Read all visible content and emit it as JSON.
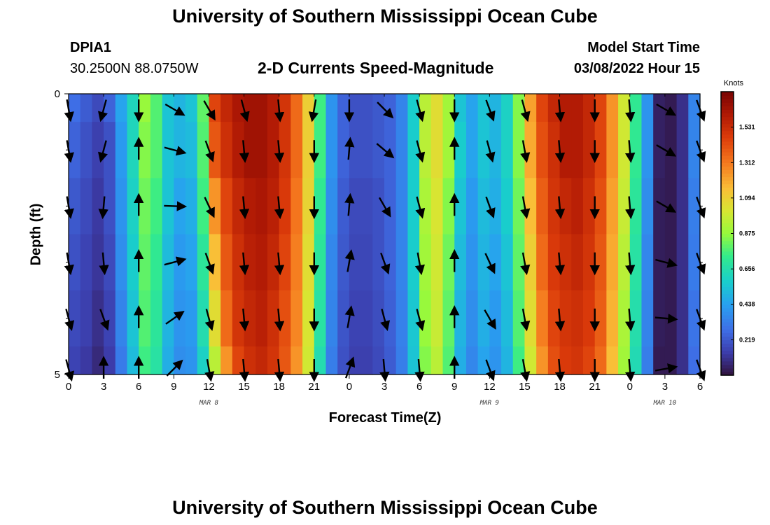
{
  "header": {
    "title": "University of Southern Mississippi Ocean Cube",
    "station_id": "DPIA1",
    "station_coords": "30.2500N  88.0750W",
    "plot_title": "2-D Currents Speed-Magnitude",
    "model_start_label": "Model Start Time",
    "model_start_value": "03/08/2022 Hour 15"
  },
  "footer": {
    "title": "University of Southern Mississippi Ocean Cube"
  },
  "chart_data": {
    "type": "heatmap",
    "title": "2-D Currents Speed-Magnitude",
    "xlabel": "Forecast Time(Z)",
    "ylabel": "Depth (ft)",
    "x_ticks": [
      "0",
      "3",
      "6",
      "9",
      "12",
      "15",
      "18",
      "21",
      "0",
      "3",
      "6",
      "9",
      "12",
      "15",
      "18",
      "21",
      "0",
      "3",
      "6"
    ],
    "x_range_hours": [
      0,
      54
    ],
    "y_ticks": [
      "0",
      "5"
    ],
    "y_range_ft": [
      0,
      5
    ],
    "date_labels": [
      {
        "label": "MAR 8",
        "hour": 12
      },
      {
        "label": "MAR 9",
        "hour": 36
      },
      {
        "label": "MAR 10",
        "hour": 51
      }
    ],
    "colorbar": {
      "unit": "Knots",
      "min": 0.0,
      "max": 1.75,
      "ticks": [
        "0.219",
        "0.438",
        "0.656",
        "0.875",
        "1.094",
        "1.312",
        "1.531"
      ],
      "tick_values": [
        0.219,
        0.438,
        0.656,
        0.875,
        1.094,
        1.312,
        1.531
      ]
    },
    "depth_levels_ft": [
      0,
      0.5,
      1.5,
      2.5,
      3.5,
      4.5
    ],
    "hours": [
      0,
      1,
      2,
      3,
      4,
      5,
      6,
      7,
      8,
      9,
      10,
      11,
      12,
      13,
      14,
      15,
      16,
      17,
      18,
      19,
      20,
      21,
      22,
      23,
      24,
      25,
      26,
      27,
      28,
      29,
      30,
      31,
      32,
      33,
      34,
      35,
      36,
      37,
      38,
      39,
      40,
      41,
      42,
      43,
      44,
      45,
      46,
      47,
      48,
      49,
      50,
      51,
      52,
      53
    ],
    "speed_knots": [
      [
        0.28,
        0.23,
        0.18,
        0.25,
        0.45,
        0.62,
        0.88,
        0.78,
        0.55,
        0.5,
        0.55,
        0.8,
        1.45,
        1.55,
        1.62,
        1.65,
        1.65,
        1.6,
        1.5,
        1.35,
        1.1,
        0.75,
        0.4,
        0.25,
        0.2,
        0.2,
        0.22,
        0.25,
        0.35,
        0.58,
        0.95,
        1.05,
        0.9,
        0.55,
        0.45,
        0.55,
        0.5,
        0.6,
        0.85,
        1.22,
        1.45,
        1.55,
        1.6,
        1.6,
        1.55,
        1.45,
        1.25,
        1.0,
        0.72,
        0.4,
        0.05,
        0.03,
        0.1,
        0.35
      ],
      [
        0.25,
        0.2,
        0.15,
        0.2,
        0.42,
        0.62,
        0.85,
        0.78,
        0.55,
        0.5,
        0.52,
        0.78,
        1.4,
        1.52,
        1.6,
        1.65,
        1.65,
        1.6,
        1.5,
        1.35,
        1.1,
        0.75,
        0.4,
        0.25,
        0.2,
        0.2,
        0.22,
        0.25,
        0.35,
        0.58,
        0.95,
        1.05,
        0.9,
        0.58,
        0.45,
        0.55,
        0.5,
        0.6,
        0.85,
        1.2,
        1.42,
        1.52,
        1.6,
        1.6,
        1.55,
        1.45,
        1.25,
        1.0,
        0.72,
        0.4,
        0.05,
        0.03,
        0.1,
        0.35
      ],
      [
        0.22,
        0.18,
        0.13,
        0.2,
        0.4,
        0.6,
        0.82,
        0.75,
        0.55,
        0.45,
        0.48,
        0.75,
        1.25,
        1.45,
        1.55,
        1.6,
        1.62,
        1.58,
        1.48,
        1.32,
        1.08,
        0.72,
        0.38,
        0.23,
        0.18,
        0.18,
        0.2,
        0.25,
        0.35,
        0.58,
        0.92,
        1.02,
        0.85,
        0.55,
        0.42,
        0.52,
        0.48,
        0.58,
        0.82,
        1.15,
        1.38,
        1.5,
        1.55,
        1.58,
        1.52,
        1.42,
        1.22,
        0.98,
        0.7,
        0.38,
        0.04,
        0.03,
        0.1,
        0.33
      ],
      [
        0.2,
        0.16,
        0.12,
        0.18,
        0.38,
        0.58,
        0.8,
        0.72,
        0.52,
        0.42,
        0.45,
        0.7,
        1.15,
        1.4,
        1.52,
        1.58,
        1.6,
        1.55,
        1.45,
        1.3,
        1.05,
        0.7,
        0.36,
        0.22,
        0.17,
        0.17,
        0.2,
        0.25,
        0.35,
        0.58,
        0.9,
        1.0,
        0.82,
        0.52,
        0.4,
        0.5,
        0.45,
        0.55,
        0.8,
        1.1,
        1.35,
        1.48,
        1.52,
        1.55,
        1.5,
        1.4,
        1.2,
        0.95,
        0.68,
        0.36,
        0.04,
        0.03,
        0.1,
        0.32
      ],
      [
        0.18,
        0.15,
        0.1,
        0.16,
        0.35,
        0.55,
        0.78,
        0.7,
        0.5,
        0.4,
        0.42,
        0.65,
        1.05,
        1.35,
        1.5,
        1.55,
        1.58,
        1.52,
        1.42,
        1.28,
        1.02,
        0.68,
        0.35,
        0.21,
        0.16,
        0.16,
        0.19,
        0.24,
        0.34,
        0.56,
        0.88,
        0.98,
        0.8,
        0.5,
        0.38,
        0.48,
        0.42,
        0.52,
        0.78,
        1.05,
        1.3,
        1.45,
        1.5,
        1.52,
        1.48,
        1.38,
        1.18,
        0.92,
        0.66,
        0.35,
        0.04,
        0.03,
        0.1,
        0.3
      ],
      [
        0.16,
        0.13,
        0.08,
        0.14,
        0.32,
        0.52,
        0.75,
        0.68,
        0.48,
        0.38,
        0.4,
        0.6,
        0.95,
        1.25,
        1.45,
        1.52,
        1.55,
        1.5,
        1.4,
        1.25,
        1.0,
        0.65,
        0.33,
        0.2,
        0.15,
        0.15,
        0.18,
        0.23,
        0.33,
        0.55,
        0.85,
        0.95,
        0.78,
        0.48,
        0.36,
        0.45,
        0.4,
        0.5,
        0.75,
        1.0,
        1.25,
        1.42,
        1.48,
        1.5,
        1.45,
        1.35,
        1.15,
        0.9,
        0.64,
        0.33,
        0.03,
        0.03,
        0.1,
        0.28
      ]
    ],
    "vector_hours": [
      0,
      3,
      6,
      9,
      12,
      15,
      18,
      21,
      24,
      27,
      30,
      33,
      36,
      39,
      42,
      45,
      48,
      51,
      54
    ],
    "vector_rows": [
      0.15,
      1.0,
      2.0,
      3.0,
      4.0,
      4.9
    ],
    "vector_direction_deg": [
      [
        170,
        195,
        180,
        120,
        150,
        165,
        175,
        190,
        180,
        135,
        165,
        180,
        160,
        165,
        175,
        180,
        175,
        120,
        160
      ],
      [
        170,
        195,
        0,
        105,
        160,
        175,
        175,
        180,
        5,
        130,
        165,
        0,
        165,
        170,
        175,
        180,
        175,
        120,
        160
      ],
      [
        170,
        185,
        0,
        92,
        155,
        175,
        175,
        180,
        5,
        150,
        165,
        0,
        160,
        170,
        175,
        180,
        175,
        120,
        160
      ],
      [
        170,
        175,
        0,
        75,
        160,
        175,
        175,
        180,
        10,
        160,
        170,
        0,
        155,
        170,
        175,
        180,
        175,
        105,
        160
      ],
      [
        165,
        160,
        0,
        55,
        165,
        175,
        175,
        180,
        10,
        165,
        165,
        0,
        150,
        170,
        175,
        180,
        175,
        95,
        160
      ],
      [
        165,
        0,
        0,
        45,
        170,
        175,
        175,
        180,
        20,
        175,
        175,
        0,
        160,
        170,
        175,
        180,
        175,
        80,
        160
      ]
    ],
    "vector_length_knots": [
      [
        1.2,
        1.2,
        1.2,
        1.2,
        1.2,
        1.2,
        1.2,
        1.2,
        1.2,
        1.2,
        1.2,
        1.2,
        1.2,
        1.2,
        1.2,
        1.2,
        1.2,
        1.2,
        1.2
      ],
      [
        1.2,
        1.2,
        1.2,
        1.2,
        1.2,
        1.2,
        1.2,
        1.2,
        1.2,
        1.2,
        1.2,
        1.2,
        1.2,
        1.2,
        1.2,
        1.2,
        1.2,
        1.2,
        1.2
      ],
      [
        1.2,
        1.2,
        1.2,
        1.2,
        1.2,
        1.2,
        1.2,
        1.2,
        1.2,
        1.2,
        1.2,
        1.2,
        1.2,
        1.2,
        1.2,
        1.2,
        1.2,
        1.2,
        1.2
      ],
      [
        1.2,
        1.2,
        1.2,
        1.2,
        1.2,
        1.2,
        1.2,
        1.2,
        1.2,
        1.2,
        1.2,
        1.2,
        1.2,
        1.2,
        1.2,
        1.2,
        1.2,
        1.2,
        1.2
      ],
      [
        1.2,
        1.2,
        1.2,
        1.2,
        1.2,
        1.2,
        1.2,
        1.2,
        1.2,
        1.2,
        1.2,
        1.2,
        1.2,
        1.2,
        1.2,
        1.2,
        1.2,
        1.2,
        1.2
      ],
      [
        1.2,
        1.2,
        1.2,
        1.2,
        1.2,
        1.2,
        1.2,
        1.2,
        1.2,
        1.2,
        1.2,
        1.2,
        1.2,
        1.2,
        1.2,
        1.2,
        1.2,
        1.2,
        1.2
      ]
    ]
  }
}
